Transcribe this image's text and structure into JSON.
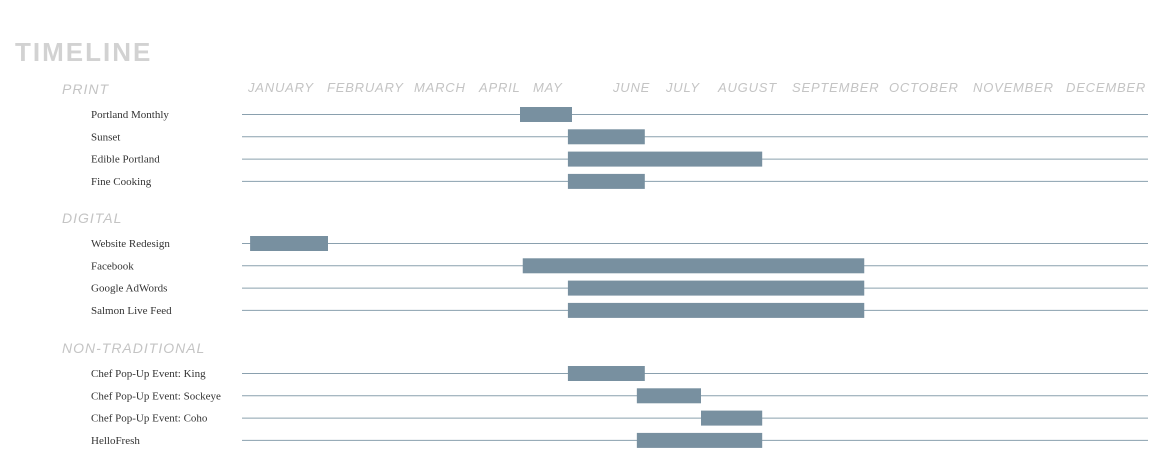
{
  "title": "TIMELINE",
  "chart_data": {
    "type": "gantt",
    "months": [
      "JANUARY",
      "FEBRUARY",
      "MARCH",
      "APRIL",
      "MAY",
      "JUNE",
      "JULY",
      "AUGUST",
      "SEPTEMBER",
      "OCTOBER",
      "NOVEMBER",
      "DECEMBER"
    ],
    "sections": [
      {
        "name": "PRINT",
        "rows": [
          {
            "label": "Portland Monthly",
            "start": 3.8,
            "end": 4.5
          },
          {
            "label": "Sunset",
            "start": 4.45,
            "end": 5.6
          },
          {
            "label": "Edible Portland",
            "start": 4.45,
            "end": 7.6
          },
          {
            "label": "Fine Cooking",
            "start": 4.45,
            "end": 5.6
          }
        ]
      },
      {
        "name": "DIGITAL",
        "rows": [
          {
            "label": "Website Redesign",
            "start": 0.05,
            "end": 1.0
          },
          {
            "label": "Facebook",
            "start": 3.85,
            "end": 8.75
          },
          {
            "label": "Google AdWords",
            "start": 4.45,
            "end": 8.75
          },
          {
            "label": "Salmon Live Feed",
            "start": 4.45,
            "end": 8.75
          }
        ]
      },
      {
        "name": "NON-TRADITIONAL",
        "rows": [
          {
            "label": "Chef Pop-Up Event: King",
            "start": 4.45,
            "end": 5.6
          },
          {
            "label": "Chef Pop-Up Event: Sockeye",
            "start": 5.45,
            "end": 6.7
          },
          {
            "label": "Chef Pop-Up Event: Coho",
            "start": 6.7,
            "end": 7.6
          },
          {
            "label": "HelloFresh",
            "start": 5.45,
            "end": 7.6
          }
        ]
      }
    ],
    "colors": {
      "bar": "#7890a0",
      "line": "#8aa0ae",
      "section": "#c4c4c4",
      "month": "#c4c4c4",
      "title": "#d2d2d2"
    }
  }
}
